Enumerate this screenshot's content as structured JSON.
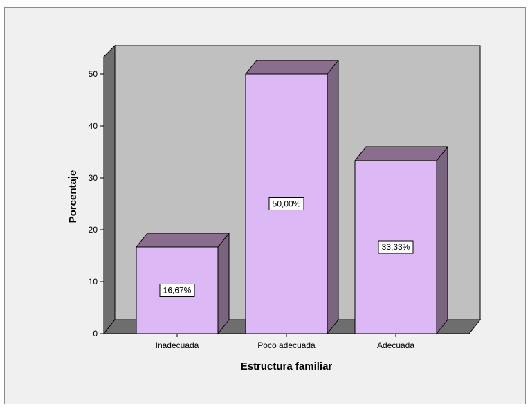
{
  "chart_data": {
    "type": "bar",
    "title": "",
    "xlabel": "Estructura familiar",
    "ylabel": "Porcentaje",
    "categories": [
      "Inadecuada",
      "Poco adecuada",
      "Adecuada"
    ],
    "values": [
      16.67,
      50.0,
      33.33
    ],
    "data_labels": [
      "16,67%",
      "50,00%",
      "33,33%"
    ],
    "yticks": [
      "0",
      "10",
      "20",
      "30",
      "40",
      "50"
    ],
    "ylim": [
      0,
      50
    ],
    "style": "3d-bars",
    "colors": {
      "bar_front": "#dcb8f4",
      "bar_top": "#8b6e8d",
      "bar_side": "#7a6480",
      "plot_back": "#c0c0c0",
      "floor": "#6e6e6e",
      "left_wall": "#6e6e6e",
      "frame_bg": "#f0f0f0"
    }
  }
}
